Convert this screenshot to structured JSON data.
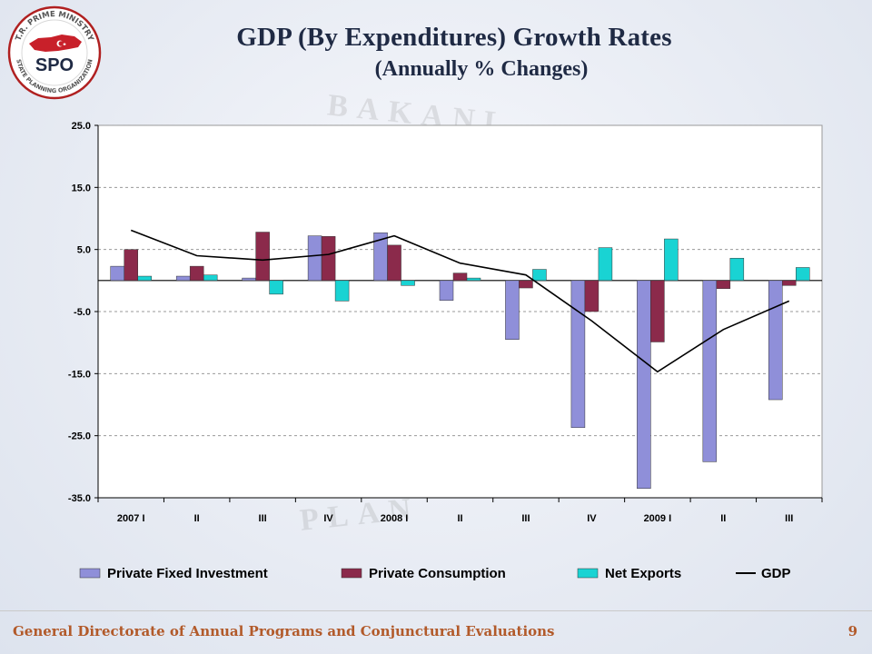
{
  "logo": {
    "ring_text_top": "T.R. PRIME MINISTRY",
    "ring_text_bottom": "STATE PLANNING ORGANIZATION",
    "abbr": "SPO",
    "colors": {
      "ring": "#b02020",
      "map": "#c8202a"
    }
  },
  "watermark": {
    "top": "BAKANL",
    "bottom": "PLAN"
  },
  "header": {
    "title": "GDP (By Expenditures)  Growth Rates",
    "subtitle": "(Annually % Changes)"
  },
  "chart_data": {
    "type": "bar",
    "categories": [
      "2007 I",
      "II",
      "III",
      "IV",
      "2008 I",
      "II",
      "III",
      "IV",
      "2009 I",
      "II",
      "III"
    ],
    "y_ticks": [
      "25.0",
      "15.0",
      "5.0",
      "-5.0",
      "-15.0",
      "-25.0",
      "-35.0"
    ],
    "ylim": [
      -35,
      25
    ],
    "grid": true,
    "legend_position": "bottom",
    "series": [
      {
        "name": "Private Fixed Investment",
        "type": "bar",
        "color": "#8f8fd9",
        "values": [
          2.3,
          0.7,
          0.4,
          7.2,
          7.7,
          -3.2,
          -9.5,
          -23.7,
          -33.5,
          -29.2,
          -19.2
        ]
      },
      {
        "name": "Private Consumption",
        "type": "bar",
        "color": "#8b2a4b",
        "values": [
          5.0,
          2.3,
          7.8,
          7.1,
          5.7,
          1.2,
          -1.2,
          -5.0,
          -9.9,
          -1.3,
          -0.8
        ]
      },
      {
        "name": "Net Exports",
        "type": "bar",
        "color": "#19d3d3",
        "values": [
          0.7,
          0.9,
          -2.2,
          -3.3,
          -0.8,
          0.4,
          1.8,
          5.3,
          6.7,
          3.6,
          2.1
        ]
      },
      {
        "name": "GDP",
        "type": "line",
        "color": "#000000",
        "values": [
          8.1,
          4.0,
          3.3,
          4.2,
          7.2,
          2.8,
          0.9,
          -6.5,
          -14.7,
          -7.9,
          -3.3
        ]
      }
    ]
  },
  "footer": {
    "org": "General Directorate of Annual Programs and Conjunctural Evaluations",
    "page": "9"
  }
}
